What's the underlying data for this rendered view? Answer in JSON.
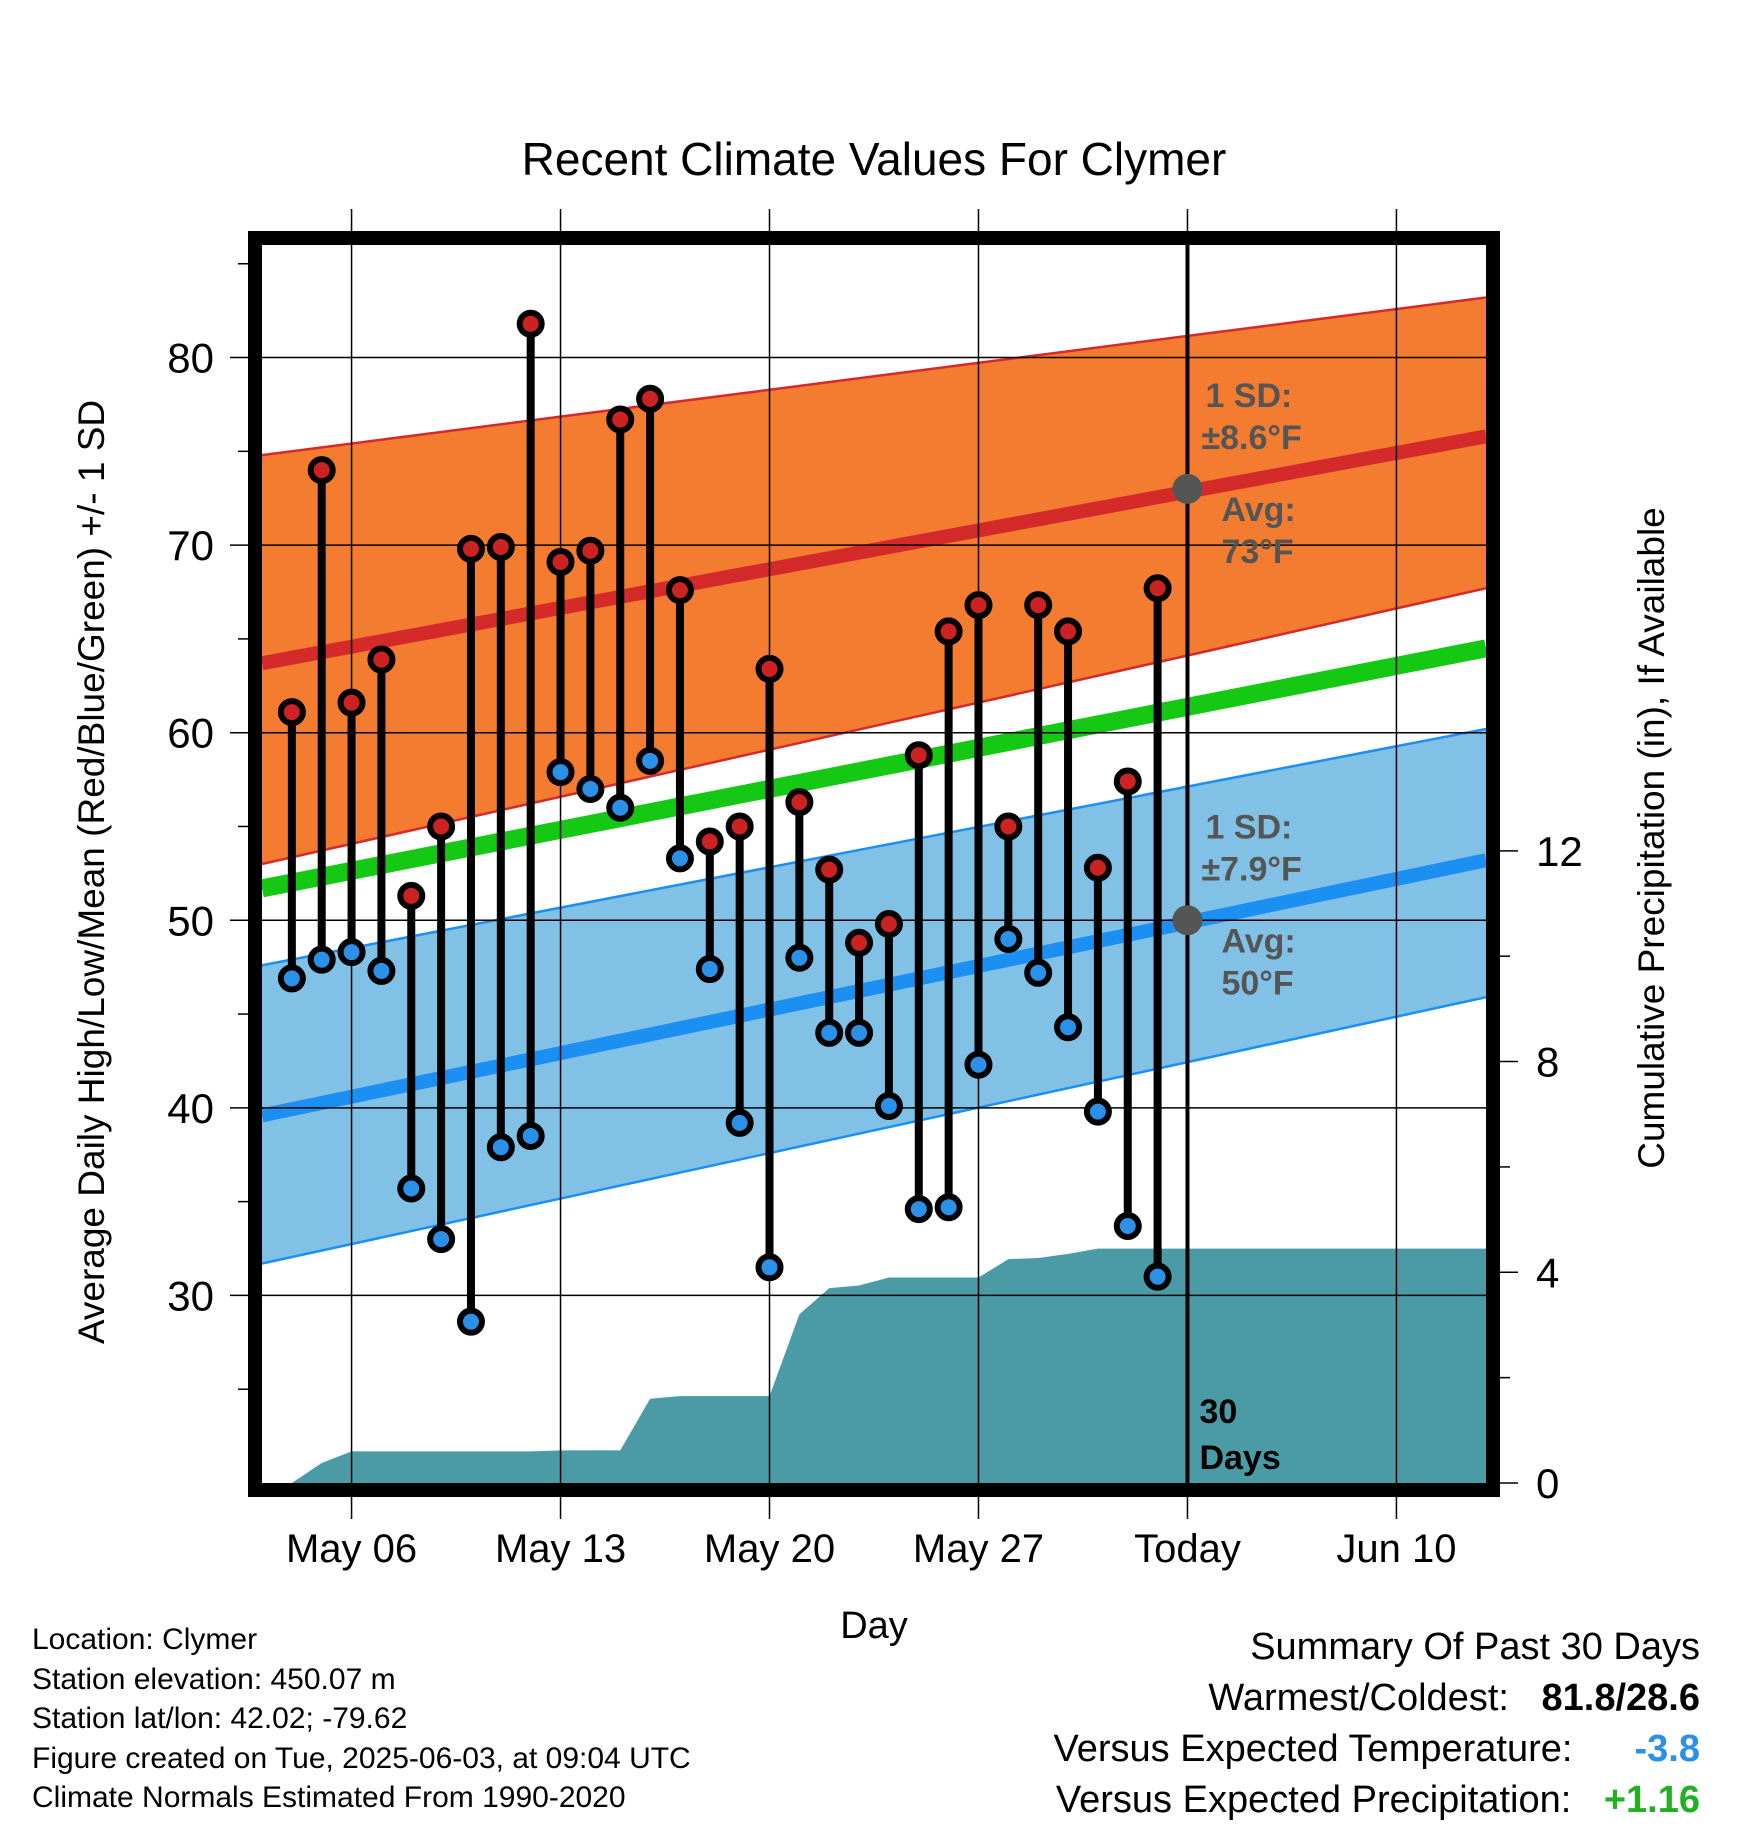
{
  "chart_data": {
    "type": "line",
    "title": "Recent Climate Values For Clymer",
    "xlabel": "Day",
    "ylabel": "Average Daily High/Low/Mean (Red/Blue/Green) +/- 1 SD",
    "y2label": "Cumulative Precipitation (in), If Available",
    "x_range": [
      "2025-05-03",
      "2025-06-13"
    ],
    "ylim": [
      20,
      86
    ],
    "y2lim": [
      0,
      23.5
    ],
    "y_ticks": [
      30,
      40,
      50,
      60,
      70,
      80
    ],
    "y2_ticks": [
      0,
      4,
      8,
      12
    ],
    "x_ticks": [
      {
        "date": "2025-05-06",
        "label": "May 06"
      },
      {
        "date": "2025-05-13",
        "label": "May 13"
      },
      {
        "date": "2025-05-20",
        "label": "May 20"
      },
      {
        "date": "2025-05-27",
        "label": "May 27"
      },
      {
        "date": "2025-06-03",
        "label": "Today"
      },
      {
        "date": "2025-06-10",
        "label": "Jun 10"
      }
    ],
    "grid": true,
    "colors": {
      "high_band": "#f47c30",
      "high_line": "#d42a2a",
      "low_band": "#82c1e6",
      "low_line": "#1c8ff2",
      "mean_line": "#14c814",
      "precip": "#4a9ba5",
      "high_marker": "#cc2222",
      "low_marker": "#2a90e8"
    },
    "normals": {
      "dates": [
        "2025-05-03",
        "2025-06-13"
      ],
      "avg_high": [
        63.7,
        75.8
      ],
      "high_sd_upper": [
        74.8,
        83.2
      ],
      "high_sd_lower": [
        53.0,
        67.7
      ],
      "avg_low": [
        39.6,
        53.2
      ],
      "low_sd_upper": [
        47.6,
        60.2
      ],
      "low_sd_lower": [
        31.7,
        45.9
      ],
      "avg_mean": [
        51.7,
        64.5
      ]
    },
    "daily": {
      "dates": [
        "2025-05-04",
        "2025-05-05",
        "2025-05-06",
        "2025-05-07",
        "2025-05-08",
        "2025-05-09",
        "2025-05-10",
        "2025-05-11",
        "2025-05-12",
        "2025-05-13",
        "2025-05-14",
        "2025-05-15",
        "2025-05-16",
        "2025-05-17",
        "2025-05-18",
        "2025-05-19",
        "2025-05-20",
        "2025-05-21",
        "2025-05-22",
        "2025-05-23",
        "2025-05-24",
        "2025-05-25",
        "2025-05-26",
        "2025-05-27",
        "2025-05-28",
        "2025-05-29",
        "2025-05-30",
        "2025-05-31",
        "2025-06-01",
        "2025-06-02"
      ],
      "high": [
        61.1,
        74.0,
        61.6,
        63.9,
        51.3,
        55.0,
        69.8,
        69.9,
        81.8,
        69.1,
        69.7,
        76.7,
        77.8,
        67.6,
        54.2,
        55.0,
        63.4,
        56.3,
        52.7,
        48.8,
        49.8,
        58.8,
        65.4,
        66.8,
        55.0,
        66.8,
        65.4,
        52.8,
        57.4,
        67.7
      ],
      "low": [
        46.9,
        47.9,
        48.3,
        47.3,
        35.7,
        33.0,
        28.6,
        37.9,
        38.5,
        57.9,
        57.0,
        56.0,
        58.5,
        53.3,
        47.4,
        39.2,
        31.5,
        48.0,
        44.0,
        44.0,
        40.1,
        34.6,
        34.7,
        42.3,
        49.0,
        47.2,
        44.3,
        39.8,
        33.7,
        31.0
      ]
    },
    "precip": {
      "dates": [
        "2025-05-04",
        "2025-05-05",
        "2025-05-06",
        "2025-05-09",
        "2025-05-12",
        "2025-05-13",
        "2025-05-15",
        "2025-05-16",
        "2025-05-17",
        "2025-05-20",
        "2025-05-21",
        "2025-05-22",
        "2025-05-23",
        "2025-05-24",
        "2025-05-25",
        "2025-05-27",
        "2025-05-28",
        "2025-05-29",
        "2025-05-30",
        "2025-05-31",
        "2025-06-03",
        "2025-06-13"
      ],
      "cumulative": [
        0.0,
        0.38,
        0.6,
        0.6,
        0.6,
        0.62,
        0.62,
        1.6,
        1.65,
        1.65,
        3.2,
        3.7,
        3.75,
        3.9,
        3.9,
        3.9,
        4.25,
        4.27,
        4.35,
        4.45,
        4.45,
        4.45
      ]
    },
    "today": {
      "date": "2025-06-03",
      "avg_high": 73,
      "avg_low": 50,
      "high_label_sd": "1 SD:",
      "high_label_val": "±8.6°F",
      "high_label_avg": "Avg:",
      "high_label_avgval": "73°F",
      "low_label_sd": "1 SD:",
      "low_label_val": "±7.9°F",
      "low_label_avg": "Avg:",
      "low_label_avgval": "50°F",
      "days_num": "30",
      "days_word": "Days"
    }
  },
  "footer": {
    "location": "Location: Clymer",
    "elevation": "Station elevation: 450.07 m",
    "latlon": "Station lat/lon: 42.02; -79.62",
    "created": "Figure created on Tue, 2025-06-03, at 09:04 UTC",
    "normals": "Climate Normals Estimated From 1990-2020"
  },
  "summary": {
    "title": "Summary Of Past 30 Days",
    "warmest_label": "Warmest/Coldest:",
    "warmest_value": "81.8/28.6",
    "temp_label": "Versus Expected Temperature:",
    "temp_value": "-3.8",
    "temp_color": "#2a90e8",
    "precip_label": "Versus Expected Precipitation:",
    "precip_value": "+1.16",
    "precip_color": "#22b022"
  }
}
